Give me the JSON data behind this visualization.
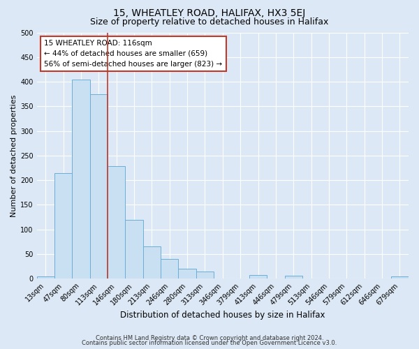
{
  "title": "15, WHEATLEY ROAD, HALIFAX, HX3 5EJ",
  "subtitle": "Size of property relative to detached houses in Halifax",
  "xlabel": "Distribution of detached houses by size in Halifax",
  "ylabel": "Number of detached properties",
  "bin_labels": [
    "13sqm",
    "47sqm",
    "80sqm",
    "113sqm",
    "146sqm",
    "180sqm",
    "213sqm",
    "246sqm",
    "280sqm",
    "313sqm",
    "346sqm",
    "379sqm",
    "413sqm",
    "446sqm",
    "479sqm",
    "513sqm",
    "546sqm",
    "579sqm",
    "612sqm",
    "646sqm",
    "679sqm"
  ],
  "bar_heights": [
    5,
    215,
    405,
    375,
    228,
    120,
    65,
    40,
    20,
    14,
    0,
    0,
    8,
    0,
    6,
    0,
    0,
    0,
    0,
    0,
    5
  ],
  "bar_color": "#c9dff2",
  "bar_edge_color": "#6aaed6",
  "vline_x_index": 3,
  "vline_color": "#c0392b",
  "annotation_title": "15 WHEATLEY ROAD: 116sqm",
  "annotation_line1": "← 44% of detached houses are smaller (659)",
  "annotation_line2": "56% of semi-detached houses are larger (823) →",
  "annotation_box_color": "#ffffff",
  "annotation_box_edge": "#c0392b",
  "footer_line1": "Contains HM Land Registry data © Crown copyright and database right 2024.",
  "footer_line2": "Contains public sector information licensed under the Open Government Licence v3.0.",
  "ylim": [
    0,
    500
  ],
  "background_color": "#dce8f5",
  "grid_color": "#ffffff",
  "title_fontsize": 10,
  "subtitle_fontsize": 9,
  "ylabel_fontsize": 8,
  "xlabel_fontsize": 8.5,
  "tick_fontsize": 7,
  "ann_fontsize": 7.5,
  "footer_fontsize": 6
}
